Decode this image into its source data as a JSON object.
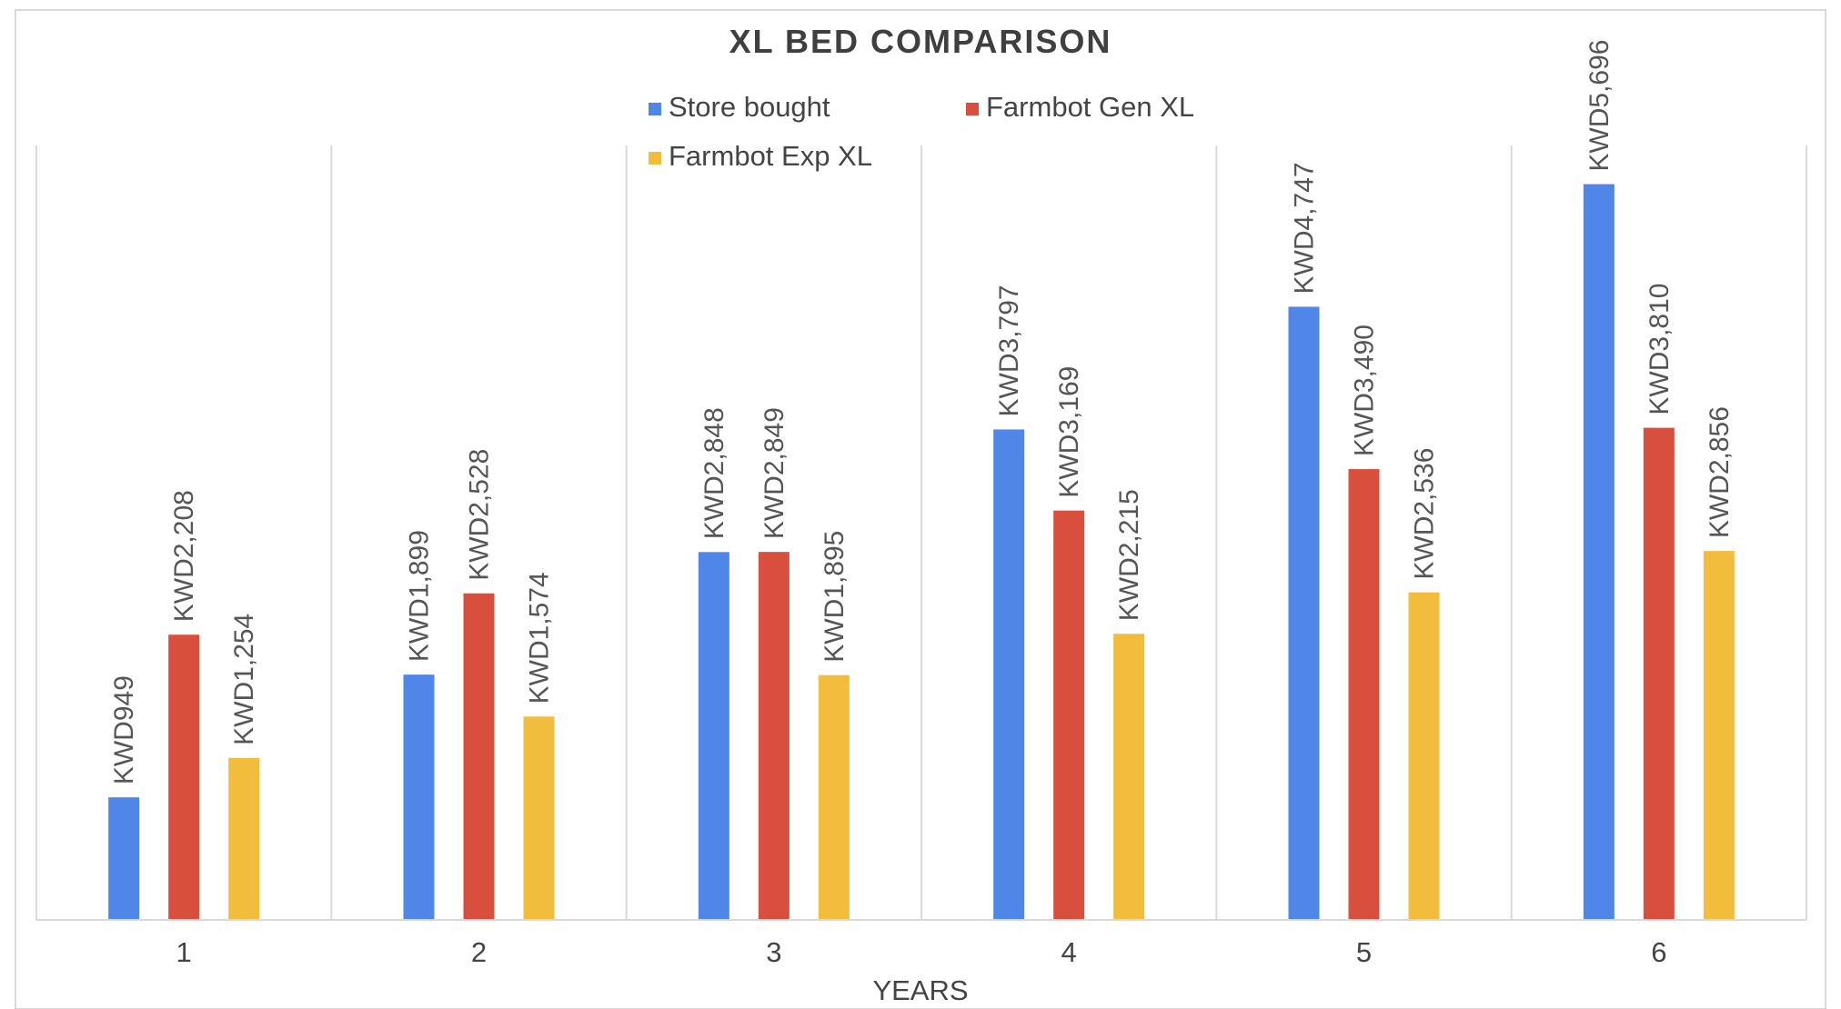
{
  "chart_data": {
    "type": "bar",
    "title": "XL BED COMPARISON",
    "xlabel": "YEARS",
    "ylabel": "",
    "categories": [
      "1",
      "2",
      "3",
      "4",
      "5",
      "6"
    ],
    "series": [
      {
        "name": "Store bought",
        "color": "#4f86e8",
        "values": [
          949,
          1899,
          2848,
          3797,
          4747,
          5696
        ],
        "labels": [
          "KWD949",
          "KWD1,899",
          "KWD2,848",
          "KWD3,797",
          "KWD4,747",
          "KWD5,696"
        ]
      },
      {
        "name": "Farmbot Gen XL",
        "color": "#d94f3d",
        "values": [
          2208,
          2528,
          2849,
          3169,
          3490,
          3810
        ],
        "labels": [
          "KWD2,208",
          "KWD2,528",
          "KWD2,849",
          "KWD3,169",
          "KWD3,490",
          "KWD3,810"
        ]
      },
      {
        "name": "Farmbot Exp XL",
        "color": "#f2bc3c",
        "values": [
          1254,
          1574,
          1895,
          2215,
          2536,
          2856
        ],
        "labels": [
          "KWD1,254",
          "KWD1,574",
          "KWD1,895",
          "KWD2,215",
          "KWD2,536",
          "KWD2,856"
        ]
      }
    ],
    "ylim": [
      0,
      6000
    ],
    "grid": "vertical category separators",
    "legend_position": "top-center"
  }
}
